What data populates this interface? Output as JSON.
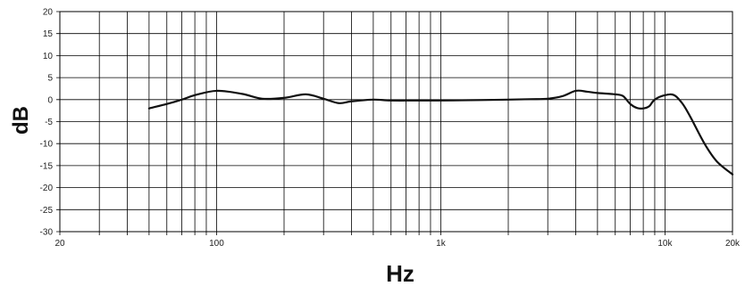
{
  "chart_data": {
    "type": "line",
    "xscale": "log",
    "xlim": [
      20,
      20000
    ],
    "ylim": [
      -30,
      20
    ],
    "grid": true,
    "xlabel": "Hz",
    "ylabel": "dB",
    "x_tick_labels": [
      {
        "value": 20,
        "label": "20"
      },
      {
        "value": 100,
        "label": "100"
      },
      {
        "value": 1000,
        "label": "1k"
      },
      {
        "value": 10000,
        "label": "10k"
      },
      {
        "value": 20000,
        "label": "20k"
      }
    ],
    "y_ticks": [
      20,
      15,
      10,
      5,
      0,
      -5,
      -10,
      -15,
      -20,
      -25,
      -30
    ],
    "x_gridlines": [
      20,
      30,
      40,
      50,
      60,
      70,
      80,
      90,
      100,
      200,
      300,
      400,
      500,
      600,
      700,
      800,
      900,
      1000,
      2000,
      3000,
      4000,
      5000,
      6000,
      7000,
      8000,
      9000,
      10000,
      20000
    ],
    "series": [
      {
        "color": "#111111",
        "x": [
          50,
          60,
          70,
          80,
          100,
          130,
          160,
          200,
          250,
          300,
          350,
          400,
          500,
          600,
          800,
          1000,
          1500,
          2000,
          2500,
          3000,
          3500,
          4000,
          4500,
          5000,
          6000,
          6500,
          7000,
          7500,
          8000,
          8500,
          9000,
          10000,
          11000,
          12000,
          13000,
          15000,
          17000,
          20000
        ],
        "y": [
          -2.0,
          -1.0,
          0.0,
          1.0,
          2.0,
          1.3,
          0.2,
          0.4,
          1.2,
          0.2,
          -0.8,
          -0.4,
          0.0,
          -0.2,
          -0.2,
          -0.2,
          -0.1,
          0.0,
          0.1,
          0.2,
          0.8,
          2.0,
          1.8,
          1.5,
          1.2,
          0.8,
          -1.0,
          -1.9,
          -2.0,
          -1.5,
          0.0,
          1.0,
          1.0,
          -1.0,
          -4.0,
          -10.0,
          -14.0,
          -17.0
        ]
      }
    ]
  }
}
